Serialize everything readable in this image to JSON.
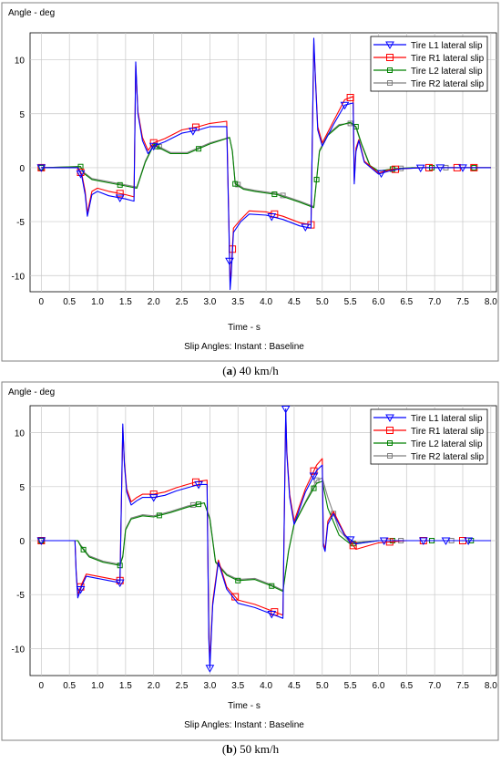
{
  "chart_data": [
    {
      "type": "line",
      "caption_letter": "a",
      "caption_text": " 40 km/h",
      "ylabel": "Angle - deg",
      "xlabel": "Time - s",
      "subtitle": "Slip Angles: Instant : Baseline",
      "xlim": [
        -0.2,
        8.1
      ],
      "ylim": [
        -11.5,
        12.5
      ],
      "xticks": [
        "0",
        "0.5",
        "1.0",
        "1.5",
        "2.0",
        "2.5",
        "3.0",
        "3.5",
        "4.0",
        "4.5",
        "5.0",
        "5.5",
        "6.0",
        "6.5",
        "7.0",
        "7.5",
        "8.0"
      ],
      "yticks": [
        -10,
        -5,
        0,
        5,
        10
      ],
      "grid": true,
      "legend_position": "top-right",
      "series": [
        {
          "name": "Tire L1 lateral slip",
          "color": "#0000ff",
          "marker": "triangle-down",
          "x": [
            0,
            0.65,
            0.72,
            0.78,
            0.82,
            0.9,
            1.0,
            1.2,
            1.5,
            1.65,
            1.68,
            1.72,
            1.8,
            1.9,
            2.0,
            2.2,
            2.5,
            2.8,
            3.0,
            3.3,
            3.34,
            3.36,
            3.38,
            3.42,
            3.55,
            3.7,
            4.0,
            4.3,
            4.6,
            4.8,
            4.85,
            4.88,
            4.92,
            5.0,
            5.2,
            5.4,
            5.55,
            5.57,
            5.6,
            5.65,
            5.75,
            6.0,
            6.2,
            6.4,
            6.8,
            7.2,
            7.6,
            8.0
          ],
          "y": [
            0,
            0,
            -0.8,
            -2.5,
            -4.5,
            -2.5,
            -2.2,
            -2.6,
            -2.9,
            -3.1,
            9.8,
            5,
            2.5,
            1.3,
            2.0,
            2.4,
            3.2,
            3.5,
            3.8,
            3.8,
            -6,
            -11.3,
            -10,
            -6,
            -5,
            -4.3,
            -4.4,
            -4.8,
            -5.4,
            -5.6,
            12,
            8,
            3.5,
            2,
            4,
            5.8,
            6.0,
            -1.5,
            1.5,
            2.5,
            0.5,
            -0.6,
            -0.3,
            -0.1,
            0,
            0,
            0,
            0
          ],
          "marker_x": [
            0,
            0.7,
            1.4,
            2.0,
            2.7,
            3.35,
            4.1,
            4.7,
            5.4,
            6.05,
            6.75,
            7.1,
            7.5
          ]
        },
        {
          "name": "Tire R1 lateral slip",
          "color": "#ff0000",
          "marker": "square",
          "x": [
            0,
            0.65,
            0.72,
            0.78,
            0.82,
            0.9,
            1.0,
            1.2,
            1.5,
            1.65,
            1.68,
            1.72,
            1.8,
            1.9,
            2.0,
            2.2,
            2.5,
            2.8,
            3.0,
            3.3,
            3.34,
            3.36,
            3.38,
            3.42,
            3.55,
            3.7,
            4.0,
            4.3,
            4.6,
            4.8,
            4.85,
            4.88,
            4.92,
            5.0,
            5.2,
            5.4,
            5.55,
            5.57,
            5.6,
            5.65,
            5.75,
            6.0,
            6.2,
            6.4,
            6.8,
            7.2,
            7.6,
            8.0
          ],
          "y": [
            0,
            0,
            -0.6,
            -2.2,
            -4.2,
            -2.2,
            -1.9,
            -2.2,
            -2.5,
            -2.7,
            9.5,
            5.2,
            2.8,
            1.6,
            2.3,
            2.7,
            3.5,
            3.8,
            4.1,
            4.3,
            -5.5,
            -10.8,
            -9.5,
            -5.6,
            -4.8,
            -4.0,
            -4.1,
            -4.5,
            -5.1,
            -5.3,
            11.5,
            8.2,
            3.8,
            2.3,
            4.3,
            6.3,
            6.6,
            -1.2,
            1.8,
            2.6,
            0.6,
            -0.5,
            -0.2,
            -0.1,
            0,
            0,
            0,
            0
          ],
          "marker_x": [
            0,
            0.7,
            1.4,
            2.0,
            2.75,
            3.4,
            4.15,
            4.8,
            5.5,
            6.3,
            6.9,
            7.4,
            7.7
          ]
        },
        {
          "name": "Tire L2 lateral slip",
          "color": "#008000",
          "marker": "square-small",
          "x": [
            0,
            0.7,
            0.75,
            0.9,
            1.2,
            1.5,
            1.7,
            1.85,
            2.0,
            2.3,
            2.6,
            3.0,
            3.35,
            3.4,
            3.45,
            3.6,
            3.8,
            4.2,
            4.6,
            4.85,
            4.95,
            5.1,
            5.3,
            5.5,
            5.6,
            5.7,
            5.85,
            6.0,
            6.3,
            6.6,
            7.0,
            7.5,
            8.0
          ],
          "y": [
            0,
            0.1,
            -0.5,
            -1.1,
            -1.4,
            -1.7,
            -1.9,
            0.5,
            2.1,
            1.3,
            1.3,
            2.2,
            2.8,
            1.5,
            -1.5,
            -2.0,
            -2.2,
            -2.5,
            -3.2,
            -3.7,
            1.5,
            3.0,
            3.9,
            4.2,
            3.8,
            2.2,
            0.2,
            -0.3,
            -0.1,
            0,
            0,
            0,
            0
          ],
          "marker_x": [
            0,
            0.7,
            1.4,
            2.05,
            2.8,
            3.45,
            4.15,
            4.9,
            5.6,
            6.25,
            6.95,
            7.7
          ]
        },
        {
          "name": "Tire R2 lateral slip",
          "color": "#808080",
          "marker": "square-small",
          "x": [
            0,
            0.7,
            0.75,
            0.9,
            1.2,
            1.5,
            1.7,
            1.85,
            2.0,
            2.3,
            2.6,
            3.0,
            3.35,
            3.4,
            3.45,
            3.6,
            3.8,
            4.2,
            4.6,
            4.85,
            4.95,
            5.1,
            5.3,
            5.5,
            5.6,
            5.7,
            5.85,
            6.0,
            6.3,
            6.6,
            7.0,
            7.5,
            8.0
          ],
          "y": [
            0,
            0.1,
            -0.4,
            -1.0,
            -1.3,
            -1.6,
            -1.8,
            0.6,
            2.2,
            1.4,
            1.4,
            2.3,
            2.8,
            1.6,
            -1.4,
            -1.9,
            -2.1,
            -2.4,
            -3.1,
            -3.6,
            1.6,
            3.1,
            4.0,
            4.1,
            3.7,
            2.1,
            0.1,
            -0.3,
            -0.1,
            0,
            0,
            0,
            0
          ],
          "marker_x": [
            0,
            2.1,
            3.5,
            4.3,
            5.5,
            6.4,
            7.2
          ]
        }
      ]
    },
    {
      "type": "line",
      "caption_letter": "b",
      "caption_text": " 50 km/h",
      "ylabel": "Angle - deg",
      "xlabel": "Time - s",
      "subtitle": "Slip Angles: Instant : Baseline",
      "xlim": [
        -0.2,
        8.1
      ],
      "ylim": [
        -12.5,
        12.5
      ],
      "xticks": [
        "0",
        "0.5",
        "1.0",
        "1.5",
        "2.0",
        "2.5",
        "3.0",
        "3.5",
        "4.0",
        "4.5",
        "5.0",
        "5.5",
        "6.0",
        "6.5",
        "7.0",
        "7.5",
        "8.0"
      ],
      "yticks": [
        -10,
        -5,
        0,
        5,
        10
      ],
      "grid": true,
      "legend_position": "top-right",
      "series": [
        {
          "name": "Tire L1 lateral slip",
          "color": "#0000ff",
          "marker": "triangle-down",
          "x": [
            0,
            0.6,
            0.62,
            0.65,
            0.72,
            0.8,
            1.0,
            1.2,
            1.4,
            1.45,
            1.48,
            1.52,
            1.6,
            1.7,
            1.8,
            2.0,
            2.2,
            2.4,
            2.6,
            2.8,
            2.95,
            2.98,
            3.0,
            3.05,
            3.15,
            3.3,
            3.5,
            3.8,
            4.1,
            4.3,
            4.35,
            4.37,
            4.42,
            4.5,
            4.7,
            4.9,
            5.0,
            5.02,
            5.05,
            5.1,
            5.2,
            5.4,
            5.6,
            6.0,
            6.5,
            7.0,
            7.5,
            8.0
          ],
          "y": [
            0,
            0,
            -3,
            -5.3,
            -4.2,
            -3.3,
            -3.5,
            -3.7,
            -3.9,
            10.8,
            7,
            4.5,
            3.3,
            3.7,
            4.0,
            4.0,
            4.2,
            4.6,
            4.9,
            5.2,
            5.2,
            -9,
            -11.8,
            -6,
            -2,
            -4.5,
            -5.8,
            -6.2,
            -6.8,
            -7.2,
            12.2,
            8,
            4,
            1.5,
            4.5,
            6.5,
            7.0,
            -0.5,
            -1.0,
            1.5,
            2.5,
            0.5,
            -0.3,
            0,
            0,
            0,
            0,
            0
          ],
          "marker_x": [
            0,
            0.7,
            1.4,
            2.0,
            2.8,
            3.0,
            4.1,
            4.35,
            4.85,
            5.5,
            6.1,
            6.8,
            7.2,
            7.6
          ]
        },
        {
          "name": "Tire R1 lateral slip",
          "color": "#ff0000",
          "marker": "square",
          "x": [
            0,
            0.6,
            0.62,
            0.65,
            0.72,
            0.8,
            1.0,
            1.2,
            1.4,
            1.45,
            1.48,
            1.52,
            1.6,
            1.7,
            1.8,
            2.0,
            2.2,
            2.4,
            2.6,
            2.8,
            2.95,
            2.98,
            3.0,
            3.05,
            3.15,
            3.3,
            3.5,
            3.8,
            4.1,
            4.3,
            4.35,
            4.37,
            4.42,
            4.5,
            4.7,
            4.9,
            5.0,
            5.02,
            5.05,
            5.1,
            5.2,
            5.4,
            5.6,
            6.0,
            6.5,
            7.0,
            7.5,
            8.0
          ],
          "y": [
            0,
            0,
            -2.8,
            -5.0,
            -4.0,
            -3.1,
            -3.3,
            -3.5,
            -3.7,
            10.5,
            7.2,
            4.8,
            3.6,
            4.0,
            4.3,
            4.3,
            4.5,
            4.9,
            5.2,
            5.5,
            5.6,
            -8.5,
            -11.3,
            -5.7,
            -1.8,
            -4.3,
            -5.5,
            -5.9,
            -6.5,
            -6.9,
            11.8,
            8.3,
            4.3,
            1.8,
            4.8,
            7.0,
            7.6,
            -0.2,
            -0.8,
            1.8,
            2.7,
            0.6,
            -0.8,
            -0.2,
            0,
            0,
            0,
            0
          ],
          "marker_x": [
            0,
            0.7,
            1.4,
            2.0,
            2.75,
            3.45,
            4.15,
            4.85,
            5.55,
            6.2,
            6.8,
            7.5
          ]
        },
        {
          "name": "Tire L2 lateral slip",
          "color": "#008000",
          "marker": "square-small",
          "x": [
            0,
            0.65,
            0.7,
            0.85,
            1.1,
            1.4,
            1.45,
            1.5,
            1.6,
            1.8,
            2.0,
            2.3,
            2.6,
            2.9,
            3.0,
            3.1,
            3.3,
            3.5,
            3.8,
            4.1,
            4.3,
            4.4,
            4.5,
            4.7,
            4.9,
            5.0,
            5.1,
            5.3,
            5.5,
            5.7,
            6.0,
            6.5,
            7.0,
            7.5,
            8.0
          ],
          "y": [
            0,
            0,
            -0.5,
            -1.5,
            -2.0,
            -2.3,
            -1.5,
            1.0,
            2.0,
            2.3,
            2.2,
            2.6,
            3.1,
            3.5,
            2.0,
            -2.0,
            -3.2,
            -3.7,
            -3.6,
            -4.2,
            -4.7,
            -1.0,
            1.5,
            3.5,
            5.3,
            5.5,
            3.0,
            0.5,
            -0.3,
            -0.2,
            0,
            0,
            0,
            0,
            0
          ],
          "marker_x": [
            0,
            0.75,
            1.4,
            2.1,
            2.8,
            3.5,
            4.1,
            4.85,
            5.55,
            6.25,
            6.95,
            7.65
          ]
        },
        {
          "name": "Tire R2 lateral slip",
          "color": "#808080",
          "marker": "square-small",
          "x": [
            0,
            0.65,
            0.7,
            0.85,
            1.1,
            1.4,
            1.45,
            1.5,
            1.6,
            1.8,
            2.0,
            2.3,
            2.6,
            2.9,
            3.0,
            3.1,
            3.3,
            3.5,
            3.8,
            4.1,
            4.3,
            4.4,
            4.5,
            4.7,
            4.9,
            5.0,
            5.1,
            5.3,
            5.5,
            5.7,
            6.0,
            6.5,
            7.0,
            7.5,
            8.0
          ],
          "y": [
            0,
            0,
            -0.4,
            -1.4,
            -1.9,
            -2.2,
            -1.4,
            1.1,
            2.1,
            2.4,
            2.3,
            2.7,
            3.2,
            3.5,
            2.1,
            -1.9,
            -3.1,
            -3.6,
            -3.5,
            -4.1,
            -4.6,
            -0.9,
            1.6,
            3.6,
            5.6,
            5.8,
            4.0,
            1.0,
            -0.2,
            -0.1,
            0,
            0,
            0,
            0,
            0
          ],
          "marker_x": [
            0,
            2.7,
            4.9,
            5.2,
            6.4,
            7.3
          ]
        }
      ]
    }
  ]
}
